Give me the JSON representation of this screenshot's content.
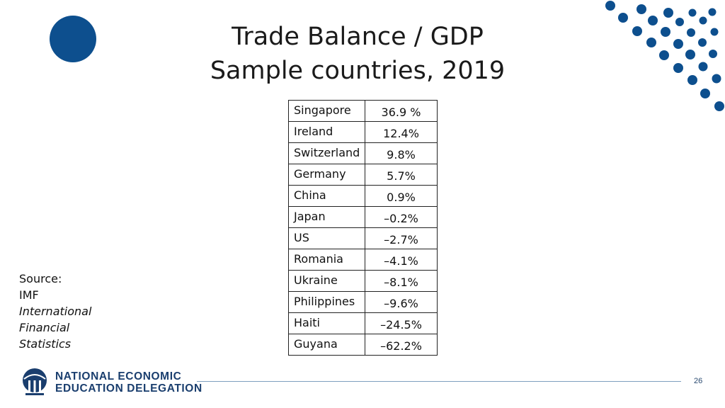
{
  "slide": {
    "title_line1": "Trade Balance / GDP",
    "title_line2": "Sample countries, 2019"
  },
  "table": {
    "rows": [
      {
        "country": "Singapore",
        "value": "36.9 %"
      },
      {
        "country": "Ireland",
        "value": "12.4%"
      },
      {
        "country": "Switzerland",
        "value": "9.8%"
      },
      {
        "country": "Germany",
        "value": "5.7%"
      },
      {
        "country": "China",
        "value": "0.9%"
      },
      {
        "country": "Japan",
        "value": "–0.2%"
      },
      {
        "country": "US",
        "value": "–2.7%"
      },
      {
        "country": "Romania",
        "value": "–4.1%"
      },
      {
        "country": "Ukraine",
        "value": "–8.1%"
      },
      {
        "country": "Philippines",
        "value": "–9.6%"
      },
      {
        "country": "Haiti",
        "value": "–24.5%"
      },
      {
        "country": "Guyana",
        "value": "–62.2%"
      }
    ]
  },
  "source": {
    "label": "Source:",
    "org": "IMF",
    "publication_line1": "International",
    "publication_line2": "Financial",
    "publication_line3": "Statistics"
  },
  "footer": {
    "logo_line1": "NATIONAL ECONOMIC",
    "logo_line2": "EDUCATION DELEGATION",
    "page_number": "26"
  },
  "colors": {
    "brand_blue": "#0d4f8e",
    "logo_text": "#1a3e6e"
  }
}
